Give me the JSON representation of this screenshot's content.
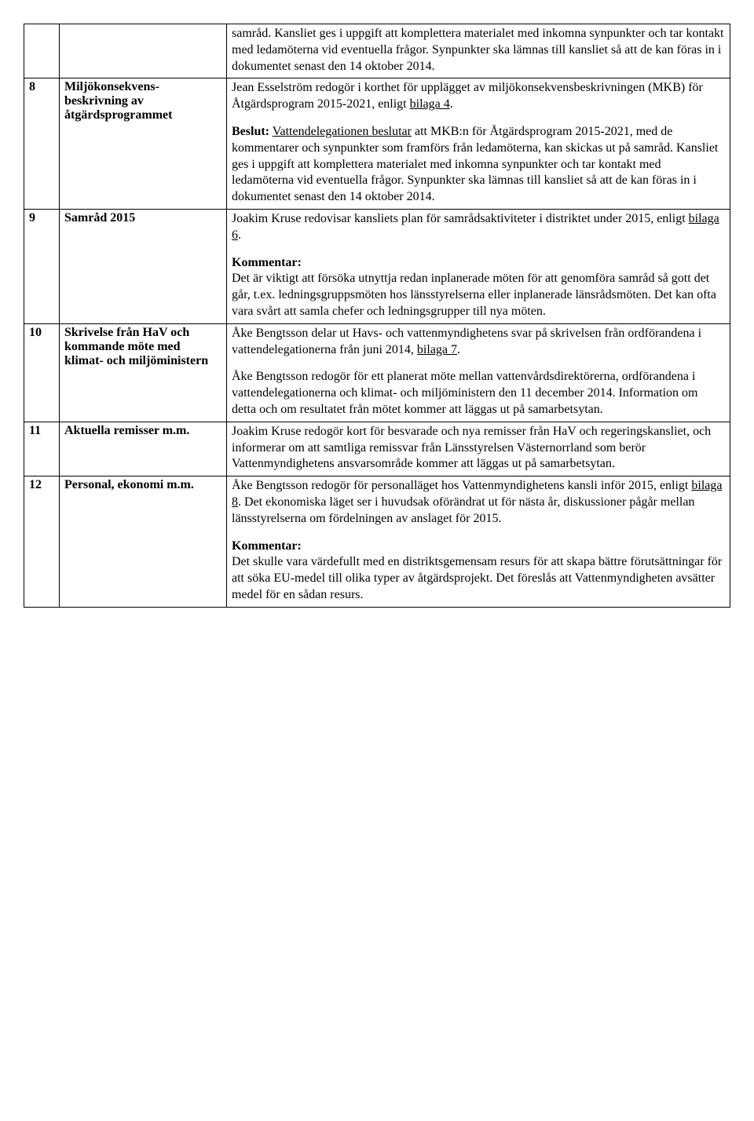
{
  "rows": [
    {
      "num": "",
      "topic": "",
      "content_plain": "samråd. Kansliet ges i uppgift att komplettera materialet med inkomna synpunkter och tar kontakt med ledamöterna vid eventuella frågor. Synpunkter ska lämnas till kansliet så att de kan föras in i dokumentet senast den 14 oktober 2014."
    },
    {
      "num": "8",
      "topic": "Miljökonsekvens-\nbeskrivning av\nåtgärdsprogrammet"
    },
    {
      "num": "9",
      "topic": "Samråd 2015"
    },
    {
      "num": "10",
      "topic": "Skrivelse från HaV och kommande möte med klimat- och miljöministern"
    },
    {
      "num": "11",
      "topic": "Aktuella remisser m.m."
    },
    {
      "num": "12",
      "topic": "Personal, ekonomi m.m."
    }
  ],
  "r8": {
    "p1a": "Jean Esselström redogör i korthet för upplägget av miljökonsekvensbeskrivningen (MKB) för Åtgärdsprogram 2015-2021, enligt ",
    "p1b": "bilaga 4",
    "p1c": ".",
    "p2a": "Beslut:",
    "p2b": " ",
    "p2c": "Vattendelegationen beslutar",
    "p2d": " att MKB:n för Åtgärdsprogram 2015-2021, med de kommentarer och synpunkter som framförs från ledamöterna, kan skickas ut på samråd. Kansliet ges i uppgift att komplettera materialet med inkomna synpunkter och tar kontakt med ledamöterna vid eventuella frågor. Synpunkter ska lämnas till kansliet så att de kan föras in i dokumentet senast den 14 oktober 2014."
  },
  "r9": {
    "p1a": "Joakim Kruse redovisar kansliets plan för samrådsaktiviteter i distriktet under 2015, enligt ",
    "p1b": "bilaga 6",
    "p1c": ".",
    "h": "Kommentar:",
    "p2": "Det är viktigt att försöka utnyttja redan inplanerade möten för att genomföra samråd så gott det går, t.ex. ledningsgruppsmöten hos länsstyrelserna eller inplanerade länsrådsmöten. Det kan ofta vara svårt att samla chefer och ledningsgrupper till nya möten."
  },
  "r10": {
    "p1a": "Åke Bengtsson delar ut Havs- och vattenmyndighetens svar på skrivelsen från ordförandena i vattendelegationerna från juni 2014, ",
    "p1b": "bilaga 7",
    "p1c": ".",
    "p2": "Åke Bengtsson redogör för ett planerat möte mellan vattenvårdsdirektörerna, ordförandena i vattendelegationerna och klimat- och miljöministern den 11 december 2014. Information om detta och om resultatet från mötet kommer att läggas ut på samarbetsytan."
  },
  "r11": {
    "p1": "Joakim Kruse redogör kort för besvarade och nya remisser från HaV och regeringskansliet, och informerar om att samtliga remissvar från Länsstyrelsen Västernorrland som berör Vattenmyndighetens ansvarsområde kommer att läggas ut på samarbetsytan."
  },
  "r12": {
    "p1a": "Åke Bengtsson redogör för personalläget hos Vattenmyndighetens kansli inför 2015, enligt ",
    "p1b": "bilaga 8",
    "p1c": ". Det ekonomiska läget ser i huvudsak oförändrat ut för nästa år, diskussioner pågår mellan länsstyrelserna om fördelningen av anslaget för 2015.",
    "h": "Kommentar:",
    "p2": "Det skulle vara värdefullt med en distriktsgemensam resurs för att skapa bättre förutsättningar för att söka EU-medel till olika typer av åtgärdsprojekt.  Det föreslås att Vattenmyndigheten avsätter medel för en sådan resurs."
  }
}
